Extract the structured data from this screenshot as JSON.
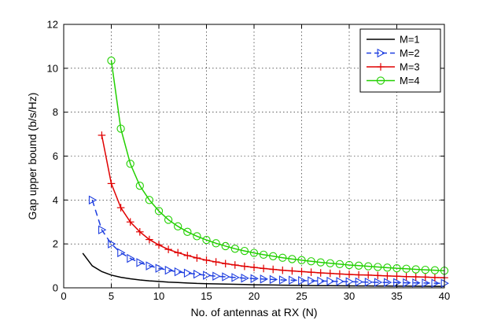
{
  "chart_data": {
    "type": "line",
    "title": "",
    "xlabel": "No. of antennas at RX (N)",
    "ylabel": "Gap upper bound (b/s/Hz)",
    "xlim": [
      0,
      40
    ],
    "ylim": [
      0,
      12
    ],
    "xticks": [
      0,
      5,
      10,
      15,
      20,
      25,
      30,
      35,
      40
    ],
    "yticks": [
      0,
      2,
      4,
      6,
      8,
      10,
      12
    ],
    "grid": true,
    "legend_position": "top-right",
    "series": [
      {
        "name": "M=1",
        "color": "#000000",
        "linestyle": "solid",
        "marker": "none",
        "x": [
          2,
          3,
          4,
          5,
          6,
          7,
          8,
          9,
          10,
          11,
          12,
          13,
          14,
          15,
          16,
          17,
          18,
          19,
          20,
          21,
          22,
          23,
          24,
          25,
          26,
          27,
          28,
          29,
          30,
          31,
          32,
          33,
          34,
          35,
          36,
          37,
          38,
          39,
          40
        ],
        "y": [
          1.58,
          1.0,
          0.74,
          0.58,
          0.48,
          0.41,
          0.36,
          0.32,
          0.29,
          0.26,
          0.24,
          0.22,
          0.2,
          0.19,
          0.18,
          0.17,
          0.16,
          0.15,
          0.14,
          0.135,
          0.13,
          0.12,
          0.115,
          0.11,
          0.105,
          0.1,
          0.098,
          0.094,
          0.09,
          0.087,
          0.084,
          0.082,
          0.079,
          0.077,
          0.075,
          0.073,
          0.071,
          0.069,
          0.067
        ]
      },
      {
        "name": "M=2",
        "color": "#1f3fe0",
        "linestyle": "dashed",
        "marker": "triangle-right",
        "x": [
          3,
          4,
          5,
          6,
          7,
          8,
          9,
          10,
          11,
          12,
          13,
          14,
          15,
          16,
          17,
          18,
          19,
          20,
          21,
          22,
          23,
          24,
          25,
          26,
          27,
          28,
          29,
          30,
          31,
          32,
          33,
          34,
          35,
          36,
          37,
          38,
          39,
          40
        ],
        "y": [
          4.0,
          2.64,
          2.0,
          1.6,
          1.34,
          1.15,
          1.0,
          0.89,
          0.8,
          0.73,
          0.67,
          0.62,
          0.57,
          0.53,
          0.5,
          0.47,
          0.44,
          0.42,
          0.4,
          0.38,
          0.36,
          0.35,
          0.33,
          0.32,
          0.31,
          0.3,
          0.29,
          0.28,
          0.27,
          0.26,
          0.25,
          0.245,
          0.24,
          0.23,
          0.225,
          0.22,
          0.21,
          0.205
        ]
      },
      {
        "name": "M=3",
        "color": "#e00000",
        "linestyle": "solid",
        "marker": "plus",
        "x": [
          4,
          5,
          6,
          7,
          8,
          9,
          10,
          11,
          12,
          13,
          14,
          15,
          16,
          17,
          18,
          19,
          20,
          21,
          22,
          23,
          24,
          25,
          26,
          27,
          28,
          29,
          30,
          31,
          32,
          33,
          34,
          35,
          36,
          37,
          38,
          39,
          40
        ],
        "y": [
          6.95,
          4.75,
          3.65,
          3.0,
          2.55,
          2.2,
          1.95,
          1.75,
          1.6,
          1.47,
          1.36,
          1.26,
          1.18,
          1.1,
          1.04,
          0.98,
          0.93,
          0.88,
          0.84,
          0.8,
          0.77,
          0.74,
          0.71,
          0.68,
          0.66,
          0.63,
          0.61,
          0.59,
          0.58,
          0.56,
          0.54,
          0.53,
          0.51,
          0.5,
          0.49,
          0.47,
          0.46
        ]
      },
      {
        "name": "M=4",
        "color": "#22d000",
        "linestyle": "solid",
        "marker": "circle",
        "x": [
          5,
          6,
          7,
          8,
          9,
          10,
          11,
          12,
          13,
          14,
          15,
          16,
          17,
          18,
          19,
          20,
          21,
          22,
          23,
          24,
          25,
          26,
          27,
          28,
          29,
          30,
          31,
          32,
          33,
          34,
          35,
          36,
          37,
          38,
          39,
          40
        ],
        "y": [
          10.35,
          7.25,
          5.65,
          4.65,
          4.0,
          3.5,
          3.1,
          2.8,
          2.55,
          2.35,
          2.18,
          2.03,
          1.9,
          1.78,
          1.68,
          1.59,
          1.51,
          1.44,
          1.37,
          1.31,
          1.26,
          1.21,
          1.16,
          1.12,
          1.08,
          1.04,
          1.01,
          0.98,
          0.95,
          0.92,
          0.89,
          0.87,
          0.84,
          0.82,
          0.8,
          0.78
        ]
      }
    ]
  }
}
